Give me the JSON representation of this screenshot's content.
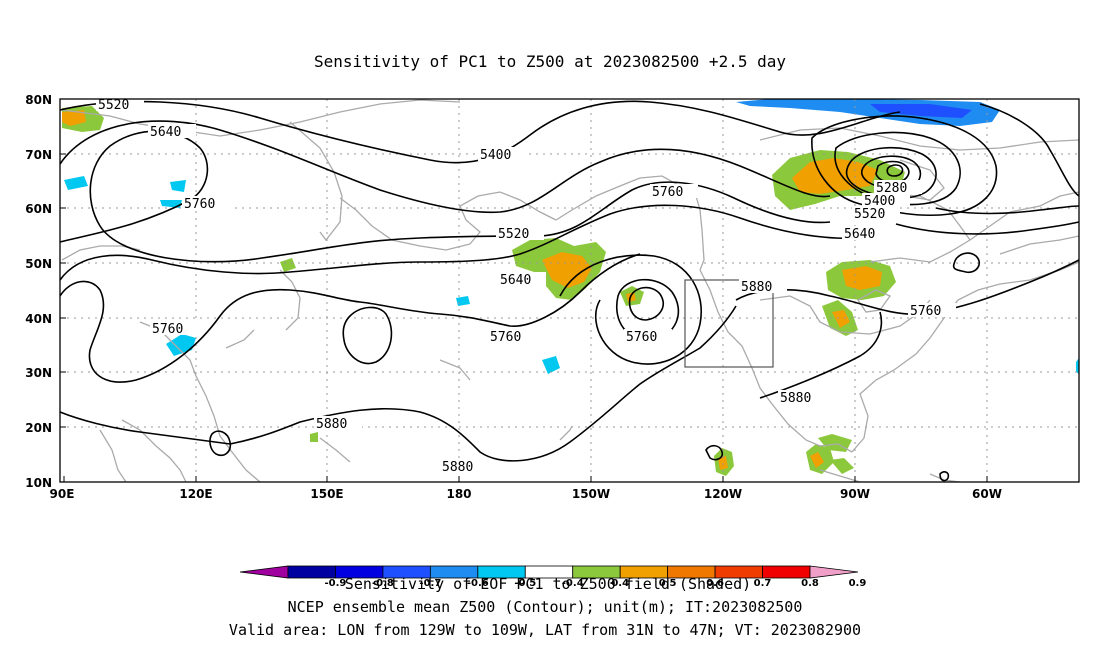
{
  "title": "Sensitivity of PC1 to Z500 at 2023082500 +2.5 day",
  "lat_ticks": [
    "80N",
    "70N",
    "60N",
    "50N",
    "40N",
    "30N",
    "20N",
    "10N"
  ],
  "lon_ticks": [
    "90E",
    "120E",
    "150E",
    "180",
    "150W",
    "120W",
    "90W",
    "60W"
  ],
  "contour_labels": [
    "5520",
    "5640",
    "5760",
    "5760",
    "5400",
    "5520",
    "5640",
    "5760",
    "5760",
    "5880",
    "5280",
    "5400",
    "5520",
    "5640",
    "5760",
    "5880",
    "5880",
    "5880"
  ],
  "colorbar": {
    "labels": [
      "-0.9",
      "-0.8",
      "-0.7",
      "-0.6",
      "-0.5",
      "-0.4",
      "0.4",
      "0.5",
      "0.6",
      "0.7",
      "0.8",
      "0.9"
    ],
    "colors": [
      "#a0009f",
      "#0000a0",
      "#0000e0",
      "#1e50ff",
      "#1e8cf0",
      "#00c8f0",
      "#ffffff",
      "#8cc83c",
      "#f0a000",
      "#f07800",
      "#f03c00",
      "#f00000",
      "#f0a0c8"
    ]
  },
  "footer": {
    "line1": "Sensitivity of EOF PC1 to Z500 field (Shaded)",
    "line2": "NCEP ensemble mean Z500 (Contour); unit(m); IT:2023082500",
    "line3": "Valid area: LON from 129W to 109W, LAT from 31N to 47N; VT: 2023082900"
  }
}
